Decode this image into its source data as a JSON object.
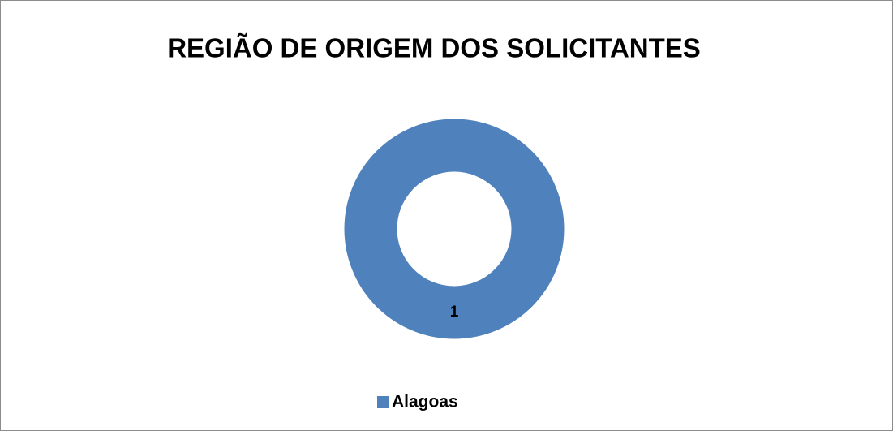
{
  "chart_data": {
    "type": "donut",
    "title": "REGIÃO DE ORIGEM DOS SOLICITANTES",
    "categories": [
      "Alagoas"
    ],
    "values": [
      1
    ],
    "colors": [
      "#4f81bd"
    ],
    "legend": "bottom"
  }
}
